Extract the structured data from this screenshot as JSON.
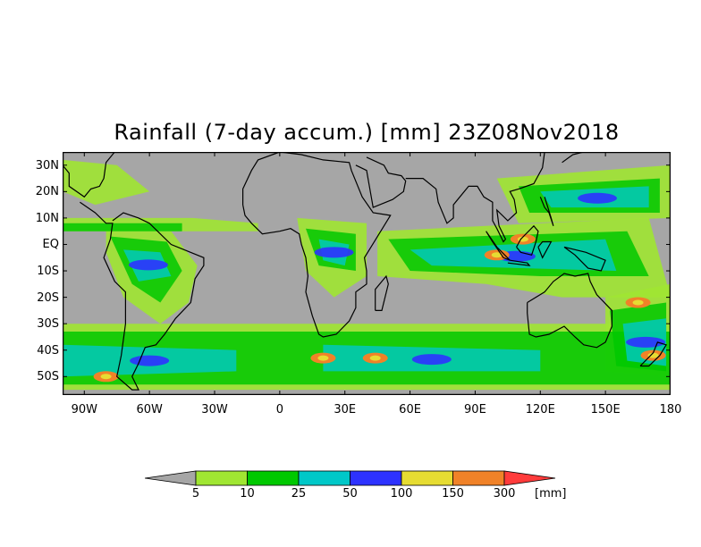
{
  "title": "Rainfall (7-day accum.) [mm] 23Z08Nov2018",
  "map": {
    "extent": {
      "lon_min": -100,
      "lon_max": 180,
      "lat_min": -57,
      "lat_max": 35
    },
    "land_color": "#a6a6a6",
    "coastline_color": "#000000",
    "lat_ticks": [
      {
        "value": 30,
        "label": "30N"
      },
      {
        "value": 20,
        "label": "20N"
      },
      {
        "value": 10,
        "label": "10N"
      },
      {
        "value": 0,
        "label": "EQ"
      },
      {
        "value": -10,
        "label": "10S"
      },
      {
        "value": -20,
        "label": "20S"
      },
      {
        "value": -30,
        "label": "30S"
      },
      {
        "value": -40,
        "label": "40S"
      },
      {
        "value": -50,
        "label": "50S"
      }
    ],
    "lon_ticks": [
      {
        "value": -90,
        "label": "90W"
      },
      {
        "value": -60,
        "label": "60W"
      },
      {
        "value": -30,
        "label": "30W"
      },
      {
        "value": 0,
        "label": "0"
      },
      {
        "value": 30,
        "label": "30E"
      },
      {
        "value": 60,
        "label": "60E"
      },
      {
        "value": 90,
        "label": "90E"
      },
      {
        "value": 120,
        "label": "120E"
      },
      {
        "value": 150,
        "label": "150E"
      },
      {
        "value": 180,
        "label": "180"
      }
    ]
  },
  "colorbar": {
    "unit": "[mm]",
    "below_color": "#a6a6a6",
    "above_color": "#ff3b3b",
    "levels": [
      "5",
      "10",
      "25",
      "50",
      "100",
      "150",
      "300"
    ],
    "colors": [
      "#a0e632",
      "#00c800",
      "#00c8c8",
      "#2d32ff",
      "#e6dc32",
      "#f08228"
    ]
  }
}
